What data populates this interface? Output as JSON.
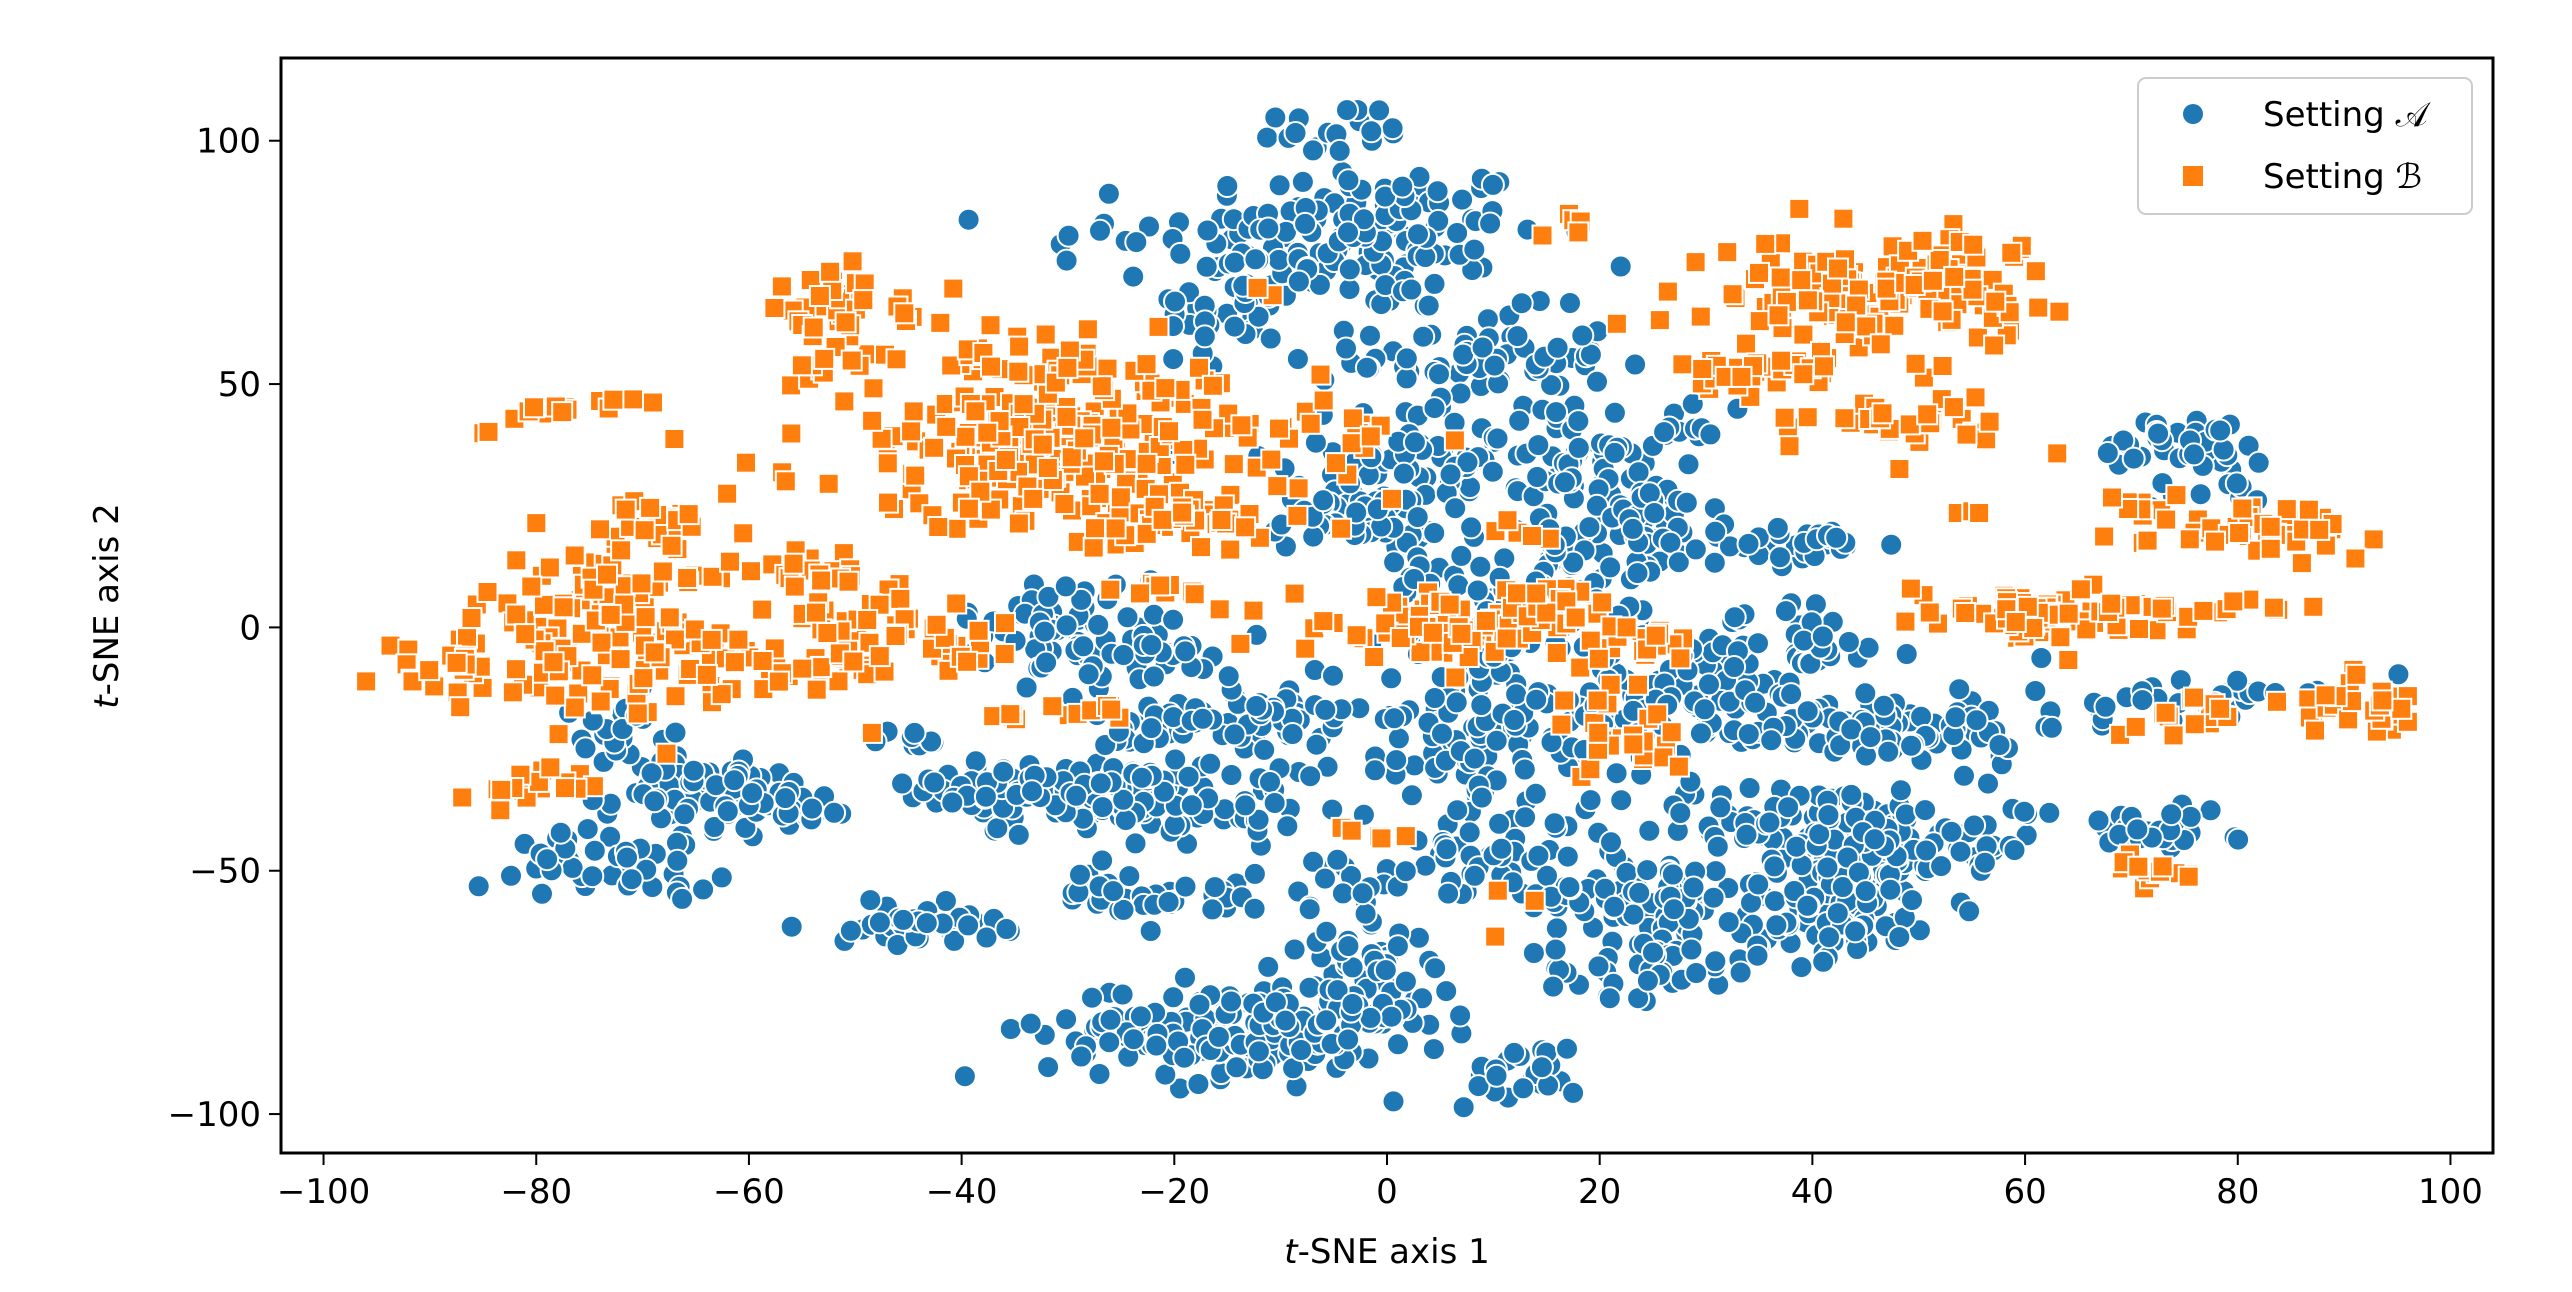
{
  "chart_data": {
    "type": "scatter",
    "xlabel_prefix": "t",
    "xlabel_suffix": "-SNE axis 1",
    "ylabel_prefix": "t",
    "ylabel_suffix": "-SNE axis 2",
    "xlim": [
      -104,
      104
    ],
    "ylim": [
      -108,
      117
    ],
    "xticks": [
      -100,
      -80,
      -60,
      -40,
      -20,
      0,
      20,
      40,
      60,
      80,
      100
    ],
    "yticks": [
      -100,
      -50,
      0,
      50,
      100
    ],
    "xtick_labels": [
      "−100",
      "−80",
      "−60",
      "−40",
      "−20",
      "0",
      "20",
      "40",
      "60",
      "80",
      "100"
    ],
    "ytick_labels": [
      "−100",
      "−50",
      "0",
      "50",
      "100"
    ],
    "grid": false,
    "legend_position": "top-right",
    "series": [
      {
        "name": "Setting 𝒜",
        "marker": "circle",
        "color": "#1f77b4",
        "clusters": [
          {
            "cx": -3,
            "cy": 80,
            "sx": 9,
            "sy": 8,
            "n": 150
          },
          {
            "cx": -5,
            "cy": 102,
            "sx": 4,
            "sy": 3,
            "n": 20
          },
          {
            "cx": -14,
            "cy": 65,
            "sx": 4,
            "sy": 7,
            "n": 40
          },
          {
            "cx": -27,
            "cy": 80,
            "sx": 2,
            "sy": 2,
            "n": 8
          },
          {
            "cx": 9,
            "cy": 55,
            "sx": 6,
            "sy": 5,
            "n": 70
          },
          {
            "cx": 3,
            "cy": 35,
            "sx": 6,
            "sy": 5,
            "n": 60
          },
          {
            "cx": -3,
            "cy": 22,
            "sx": 4,
            "sy": 3,
            "n": 60
          },
          {
            "cx": 20,
            "cy": 35,
            "sx": 6,
            "sy": 5,
            "n": 70
          },
          {
            "cx": 24,
            "cy": 20,
            "sx": 4,
            "sy": 6,
            "n": 60
          },
          {
            "cx": 11,
            "cy": 8,
            "sx": 6,
            "sy": 6,
            "n": 60
          },
          {
            "cx": 10,
            "cy": -22,
            "sx": 8,
            "sy": 8,
            "n": 120
          },
          {
            "cx": 28,
            "cy": -12,
            "sx": 6,
            "sy": 6,
            "n": 80
          },
          {
            "cx": 45,
            "cy": -20,
            "sx": 10,
            "sy": 4,
            "n": 100
          },
          {
            "cx": 40,
            "cy": 17,
            "sx": 4,
            "sy": 2,
            "n": 30
          },
          {
            "cx": 38,
            "cy": 2,
            "sx": 3,
            "sy": 2,
            "n": 10
          },
          {
            "cx": 40,
            "cy": -5,
            "sx": 4,
            "sy": 2,
            "n": 20
          },
          {
            "cx": 38,
            "cy": -40,
            "sx": 8,
            "sy": 4,
            "n": 80
          },
          {
            "cx": 42,
            "cy": -57,
            "sx": 5,
            "sy": 6,
            "n": 90
          },
          {
            "cx": 24,
            "cy": -55,
            "sx": 5,
            "sy": 5,
            "n": 80
          },
          {
            "cx": 25,
            "cy": -70,
            "sx": 5,
            "sy": 3,
            "n": 40
          },
          {
            "cx": 50,
            "cy": -45,
            "sx": 6,
            "sy": 5,
            "n": 70
          },
          {
            "cx": 8,
            "cy": -47,
            "sx": 4,
            "sy": 5,
            "n": 40
          },
          {
            "cx": -2,
            "cy": -68,
            "sx": 3,
            "sy": 3,
            "n": 30
          },
          {
            "cx": -16,
            "cy": -83,
            "sx": 8,
            "sy": 5,
            "n": 150
          },
          {
            "cx": -3,
            "cy": -80,
            "sx": 5,
            "sy": 4,
            "n": 60
          },
          {
            "cx": 12,
            "cy": -92,
            "sx": 3,
            "sy": 3,
            "n": 25
          },
          {
            "cx": -24,
            "cy": -55,
            "sx": 3,
            "sy": 3,
            "n": 30
          },
          {
            "cx": -15,
            "cy": -54,
            "sx": 2,
            "sy": 2,
            "n": 10
          },
          {
            "cx": -4,
            "cy": -53,
            "sx": 3,
            "sy": 3,
            "n": 20
          },
          {
            "cx": -44,
            "cy": -61,
            "sx": 4,
            "sy": 2,
            "n": 40
          },
          {
            "cx": -25,
            "cy": -35,
            "sx": 9,
            "sy": 4,
            "n": 120
          },
          {
            "cx": -15,
            "cy": -20,
            "sx": 6,
            "sy": 4,
            "n": 80
          },
          {
            "cx": -33,
            "cy": -33,
            "sx": 5,
            "sy": 2,
            "n": 40
          },
          {
            "cx": -30,
            "cy": 0,
            "sx": 5,
            "sy": 5,
            "n": 60
          },
          {
            "cx": -22,
            "cy": -5,
            "sx": 4,
            "sy": 3,
            "n": 30
          },
          {
            "cx": -65,
            "cy": -35,
            "sx": 7,
            "sy": 5,
            "n": 80
          },
          {
            "cx": -72,
            "cy": -48,
            "sx": 5,
            "sy": 3,
            "n": 40
          },
          {
            "cx": -55,
            "cy": -37,
            "sx": 3,
            "sy": 2,
            "n": 20
          },
          {
            "cx": -72,
            "cy": -20,
            "sx": 3,
            "sy": 5,
            "n": 20
          },
          {
            "cx": -45,
            "cy": -23,
            "sx": 2,
            "sy": 1,
            "n": 8
          },
          {
            "cx": 10,
            "cy": -4,
            "sx": 4,
            "sy": 3,
            "n": 30
          },
          {
            "cx": 75,
            "cy": 38,
            "sx": 4,
            "sy": 3,
            "n": 35
          },
          {
            "cx": 78,
            "cy": 28,
            "sx": 3,
            "sy": 2,
            "n": 10
          },
          {
            "cx": 77,
            "cy": -14,
            "sx": 5,
            "sy": 2,
            "n": 30
          },
          {
            "cx": 72,
            "cy": -42,
            "sx": 4,
            "sy": 2,
            "n": 30
          },
          {
            "cx": 60,
            "cy": -38,
            "sx": 1,
            "sy": 1,
            "n": 4
          }
        ]
      },
      {
        "name": "Setting ℬ",
        "marker": "square",
        "color": "#ff7f0e",
        "clusters": [
          {
            "cx": -30,
            "cy": 37,
            "sx": 12,
            "sy": 8,
            "n": 260
          },
          {
            "cx": -20,
            "cy": 22,
            "sx": 7,
            "sy": 3,
            "n": 40
          },
          {
            "cx": -52,
            "cy": 65,
            "sx": 6,
            "sy": 4,
            "n": 40
          },
          {
            "cx": -52,
            "cy": 55,
            "sx": 2,
            "sy": 2,
            "n": 10
          },
          {
            "cx": -33,
            "cy": 55,
            "sx": 6,
            "sy": 3,
            "n": 30
          },
          {
            "cx": -73,
            "cy": 2,
            "sx": 6,
            "sy": 9,
            "n": 120
          },
          {
            "cx": -86,
            "cy": -8,
            "sx": 5,
            "sy": 3,
            "n": 30
          },
          {
            "cx": -60,
            "cy": -8,
            "sx": 7,
            "sy": 4,
            "n": 50
          },
          {
            "cx": -55,
            "cy": 12,
            "sx": 3,
            "sy": 2,
            "n": 15
          },
          {
            "cx": -50,
            "cy": 2,
            "sx": 4,
            "sy": 4,
            "n": 25
          },
          {
            "cx": -42,
            "cy": -4,
            "sx": 4,
            "sy": 3,
            "n": 25
          },
          {
            "cx": -80,
            "cy": -33,
            "sx": 3,
            "sy": 2,
            "n": 20
          },
          {
            "cx": -80,
            "cy": 45,
            "sx": 2,
            "sy": 1,
            "n": 8
          },
          {
            "cx": -72,
            "cy": 46,
            "sx": 2,
            "sy": 1,
            "n": 6
          },
          {
            "cx": -85,
            "cy": 40,
            "sx": 1,
            "sy": 1,
            "n": 2
          },
          {
            "cx": -68,
            "cy": 22,
            "sx": 2,
            "sy": 2,
            "n": 10
          },
          {
            "cx": -30,
            "cy": -18,
            "sx": 4,
            "sy": 1,
            "n": 15
          },
          {
            "cx": -20,
            "cy": 8,
            "sx": 3,
            "sy": 1,
            "n": 10
          },
          {
            "cx": 5,
            "cy": 0,
            "sx": 7,
            "sy": 3,
            "n": 60
          },
          {
            "cx": 15,
            "cy": 5,
            "sx": 4,
            "sy": 2,
            "n": 20
          },
          {
            "cx": 22,
            "cy": -4,
            "sx": 4,
            "sy": 3,
            "n": 20
          },
          {
            "cx": 22,
            "cy": -23,
            "sx": 4,
            "sy": 4,
            "n": 25
          },
          {
            "cx": 45,
            "cy": 68,
            "sx": 7,
            "sy": 6,
            "n": 120
          },
          {
            "cx": 34,
            "cy": 52,
            "sx": 4,
            "sy": 2,
            "n": 30
          },
          {
            "cx": 50,
            "cy": 42,
            "sx": 5,
            "sy": 3,
            "n": 30
          },
          {
            "cx": 53,
            "cy": 73,
            "sx": 4,
            "sy": 4,
            "n": 30
          },
          {
            "cx": 17,
            "cy": 83,
            "sx": 1,
            "sy": 1,
            "n": 5
          },
          {
            "cx": 60,
            "cy": 3,
            "sx": 6,
            "sy": 3,
            "n": 60
          },
          {
            "cx": 74,
            "cy": 4,
            "sx": 5,
            "sy": 1,
            "n": 20
          },
          {
            "cx": 84,
            "cy": 20,
            "sx": 6,
            "sy": 3,
            "n": 40
          },
          {
            "cx": 70,
            "cy": 24,
            "sx": 2,
            "sy": 2,
            "n": 8
          },
          {
            "cx": 91,
            "cy": -16,
            "sx": 3,
            "sy": 3,
            "n": 35
          },
          {
            "cx": 77,
            "cy": -20,
            "sx": 4,
            "sy": 3,
            "n": 15
          },
          {
            "cx": 72,
            "cy": -50,
            "sx": 2,
            "sy": 2,
            "n": 15
          },
          {
            "cx": -3,
            "cy": 40,
            "sx": 2,
            "sy": 2,
            "n": 5
          },
          {
            "cx": 2,
            "cy": -43,
            "sx": 3,
            "sy": 2,
            "n": 5
          },
          {
            "cx": 13,
            "cy": 20,
            "sx": 2,
            "sy": 2,
            "n": 5
          },
          {
            "cx": 13,
            "cy": -58,
            "sx": 2,
            "sy": 2,
            "n": 3
          },
          {
            "cx": -12,
            "cy": 70,
            "sx": 1,
            "sy": 1,
            "n": 2
          },
          {
            "cx": 56,
            "cy": 24,
            "sx": 1,
            "sy": 1,
            "n": 3
          }
        ]
      }
    ]
  }
}
